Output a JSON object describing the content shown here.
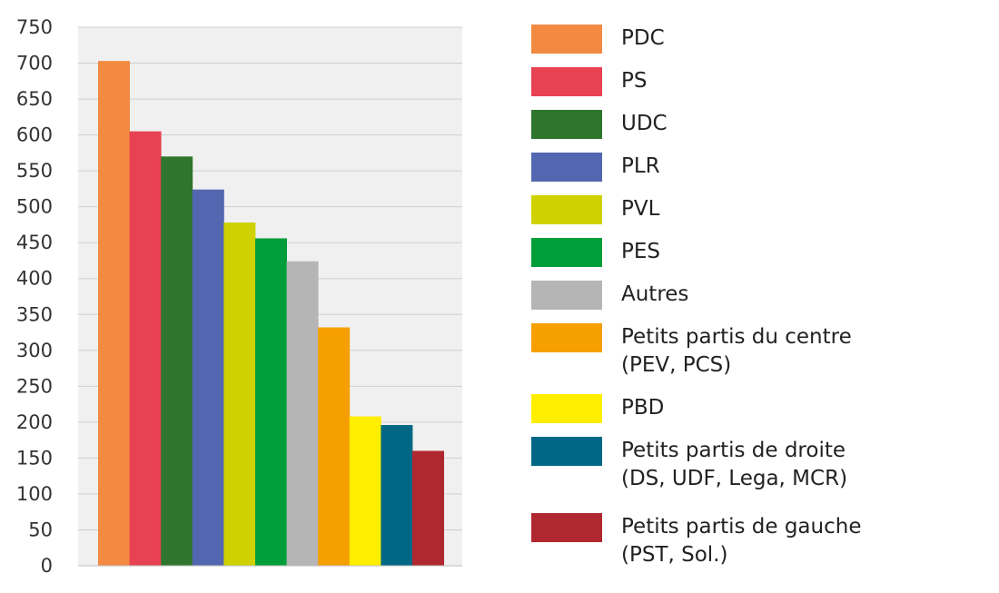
{
  "chart_data": {
    "type": "bar",
    "categories": [
      "PDC",
      "PS",
      "UDC",
      "PLR",
      "PVL",
      "PES",
      "Autres",
      "Petits partis du centre (PEV, PCS)",
      "PBD",
      "Petits partis de droite (DS, UDF, Lega, MCR)",
      "Petits partis de gauche (PST, Sol.)"
    ],
    "values": [
      703,
      605,
      570,
      524,
      478,
      456,
      424,
      332,
      208,
      196,
      160
    ],
    "ylim": [
      0,
      750
    ],
    "yticks": [
      0,
      50,
      100,
      150,
      200,
      250,
      300,
      350,
      400,
      450,
      500,
      550,
      600,
      650,
      700,
      750
    ],
    "grid": true,
    "legend_position": "right",
    "title": "",
    "xlabel": "",
    "ylabel": "",
    "colors": [
      "#F28A41",
      "#E84152",
      "#30752E",
      "#5267AF",
      "#CFD200",
      "#009E3A",
      "#B5B5B5",
      "#F5A000",
      "#FFEE00",
      "#006884",
      "#B0282F"
    ]
  },
  "legend": {
    "items": [
      {
        "label": "PDC",
        "color": "#F28A41"
      },
      {
        "label": "PS",
        "color": "#E84152"
      },
      {
        "label": "UDC",
        "color": "#30752E"
      },
      {
        "label": "PLR",
        "color": "#5267AF"
      },
      {
        "label": "PVL",
        "color": "#CFD200"
      },
      {
        "label": "PES",
        "color": "#009E3A"
      },
      {
        "label": "Autres",
        "color": "#B5B5B5"
      },
      {
        "label": "Petits partis du centre\n(PEV, PCS)",
        "color": "#F5A000"
      },
      {
        "label": "PBD",
        "color": "#FFEE00"
      },
      {
        "label": "Petits partis de droite\n(DS, UDF, Lega, MCR)",
        "color": "#006884"
      },
      {
        "label": "Petits partis de gauche\n(PST, Sol.)",
        "color": "#B0282F"
      }
    ]
  }
}
